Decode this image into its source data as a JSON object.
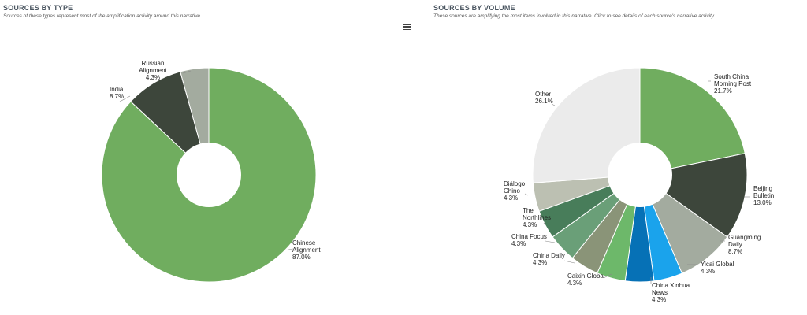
{
  "menu_icon": "hamburger-icon",
  "left_panel": {
    "title": "SOURCES BY TYPE",
    "subtitle": "Sources of these types represent most of the amplification activity around this narrative"
  },
  "right_panel": {
    "title": "SOURCES BY VOLUME",
    "subtitle": "These sources are amplifying the most items involved in this narrative. Click to see details of each source's narrative activity."
  },
  "chart_data": [
    {
      "type": "pie",
      "donut": true,
      "slices": [
        {
          "name": "Chinese Alignment",
          "label_lines": [
            "Chinese",
            "Alignment"
          ],
          "value": 87.0,
          "value_label": "87.0%",
          "color": "#70ad5f"
        },
        {
          "name": "India",
          "label_lines": [
            "India"
          ],
          "value": 8.7,
          "value_label": "8.7%",
          "color": "#3d463b"
        },
        {
          "name": "Russian Alignment",
          "label_lines": [
            "Russian",
            "Alignment"
          ],
          "value": 4.3,
          "value_label": "4.3%",
          "color": "#a3ab9f"
        }
      ]
    },
    {
      "type": "pie",
      "donut": true,
      "slices": [
        {
          "name": "South China Morning Post",
          "label_lines": [
            "South China",
            "Morning Post"
          ],
          "value": 21.7,
          "value_label": "21.7%",
          "color": "#70ad5f"
        },
        {
          "name": "Beijing Bulletin",
          "label_lines": [
            "Beijing",
            "Bulletin"
          ],
          "value": 13.0,
          "value_label": "13.0%",
          "color": "#3d463b"
        },
        {
          "name": "Guangming Daily",
          "label_lines": [
            "Guangming",
            "Daily"
          ],
          "value": 8.7,
          "value_label": "8.7%",
          "color": "#a3ab9f"
        },
        {
          "name": "Yicai Global",
          "label_lines": [
            "Yicai Global"
          ],
          "value": 4.3,
          "value_label": "4.3%",
          "color": "#1aa3ec"
        },
        {
          "name": "China Xinhua News",
          "label_lines": [
            "China Xinhua",
            "News"
          ],
          "value": 4.3,
          "value_label": "4.3%",
          "color": "#0671b6"
        },
        {
          "name": "Caixin Global",
          "label_lines": [
            "Caixin Global"
          ],
          "value": 4.3,
          "value_label": "4.3%",
          "color": "#6db86a"
        },
        {
          "name": "China Daily",
          "label_lines": [
            "China Daily"
          ],
          "value": 4.3,
          "value_label": "4.3%",
          "color": "#8a9478"
        },
        {
          "name": "China Focus",
          "label_lines": [
            "China Focus"
          ],
          "value": 4.3,
          "value_label": "4.3%",
          "color": "#6a9f78"
        },
        {
          "name": "The Northlines",
          "label_lines": [
            "The",
            "Northlines"
          ],
          "value": 4.3,
          "value_label": "4.3%",
          "color": "#487d5a"
        },
        {
          "name": "Diálogo Chino",
          "label_lines": [
            "Diálogo",
            "Chino"
          ],
          "value": 4.3,
          "value_label": "4.3%",
          "color": "#bcc0b2"
        },
        {
          "name": "Other",
          "label_lines": [
            "Other"
          ],
          "value": 26.1,
          "value_label": "26.1%",
          "color": "#ebebeb"
        }
      ]
    }
  ]
}
